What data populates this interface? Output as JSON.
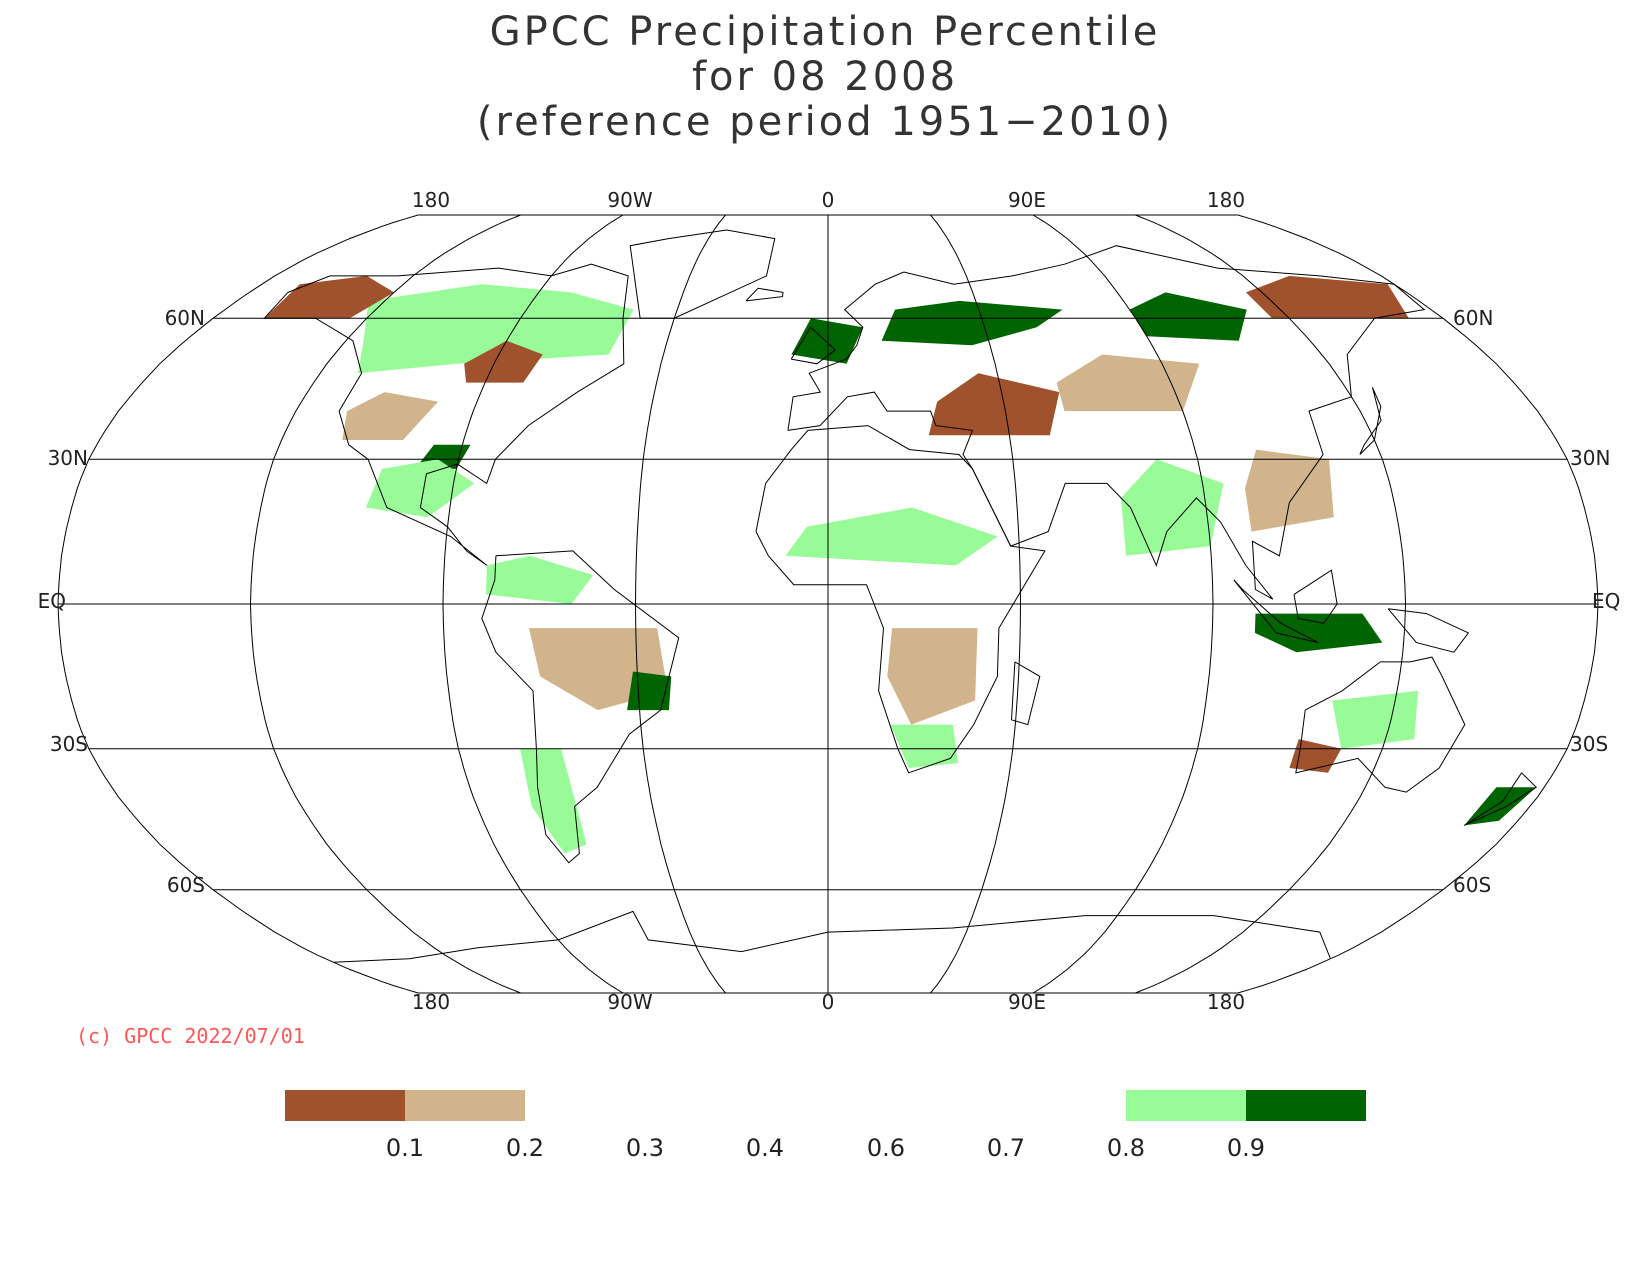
{
  "title": {
    "line1": "GPCC Precipitation Percentile",
    "line2": "for 08 2008",
    "line3": "(reference period 1951−2010)"
  },
  "axes": {
    "top_lon_labels": [
      "180",
      "90W",
      "0",
      "90E",
      "180"
    ],
    "bottom_lon_labels": [
      "180",
      "90W",
      "0",
      "90E",
      "180"
    ],
    "lat_labels": [
      {
        "lat": 60,
        "text": "60N"
      },
      {
        "lat": 30,
        "text": "30N"
      },
      {
        "lat": 0,
        "text": "EQ"
      },
      {
        "lat": -30,
        "text": "30S"
      },
      {
        "lat": -60,
        "text": "60S"
      }
    ]
  },
  "copyright": "(c) GPCC 2022/07/01",
  "legend": {
    "boxes": [
      {
        "color": "#a0522d",
        "range": [
          0.0,
          0.1
        ]
      },
      {
        "color": "#d2b48c",
        "range": [
          0.1,
          0.2
        ]
      },
      {
        "color": "#98fb98",
        "range": [
          0.8,
          0.9
        ]
      },
      {
        "color": "#006400",
        "range": [
          0.9,
          1.0
        ]
      }
    ],
    "labels": [
      "0.1",
      "0.2",
      "0.3",
      "0.4",
      "0.6",
      "0.7",
      "0.8",
      "0.9"
    ]
  },
  "colors": {
    "very_dry": "#a0522d",
    "dry": "#d2b48c",
    "wet": "#98fb98",
    "very_wet": "#006400",
    "grid": "#000000",
    "copyright": "#ff5555"
  }
}
